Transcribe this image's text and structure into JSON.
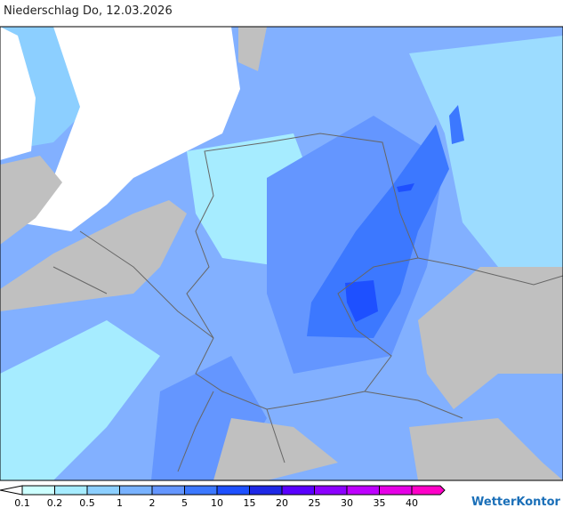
{
  "title": "Niederschlag Do, 12.03.2026",
  "legend": [
    {
      "label": "0.1",
      "color": "#ccffff"
    },
    {
      "label": "0.2",
      "color": "#a6ecff"
    },
    {
      "label": "0.5",
      "color": "#8ccfff"
    },
    {
      "label": "1",
      "color": "#78b2ff"
    },
    {
      "label": "2",
      "color": "#6496ff"
    },
    {
      "label": "5",
      "color": "#3c78ff"
    },
    {
      "label": "10",
      "color": "#1e50ff"
    },
    {
      "label": "15",
      "color": "#1e28e6"
    },
    {
      "label": "20",
      "color": "#5a00ff"
    },
    {
      "label": "25",
      "color": "#8c00ff"
    },
    {
      "label": "30",
      "color": "#be00ff"
    },
    {
      "label": "35",
      "color": "#e600e6"
    },
    {
      "label": "40",
      "color": "#ff00c8"
    }
  ],
  "brand": "WetterKontor"
}
